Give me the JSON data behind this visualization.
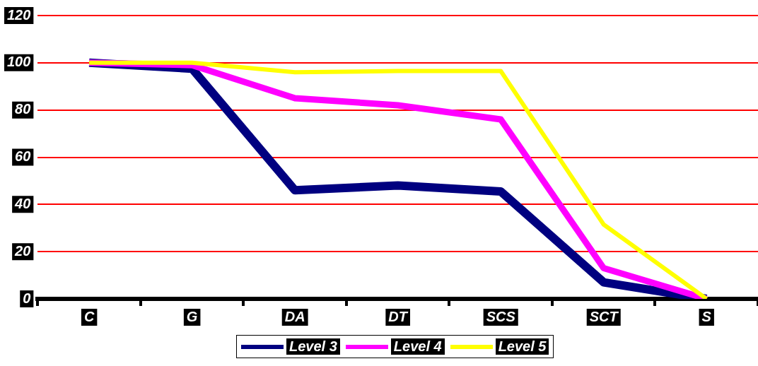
{
  "chart_data": {
    "type": "line",
    "categories": [
      "C",
      "G",
      "DA",
      "DT",
      "SCS",
      "SCT",
      "S"
    ],
    "series": [
      {
        "name": "Level 3",
        "color": "#000080",
        "values": [
          100,
          97.5,
          46,
          48,
          45.5,
          7,
          0
        ]
      },
      {
        "name": "Level 4",
        "color": "#ff00ff",
        "values": [
          100,
          99,
          85,
          82,
          76,
          13,
          0
        ]
      },
      {
        "name": "Level 5",
        "color": "#ffff00",
        "values": [
          100,
          100,
          96,
          96.5,
          96.5,
          31.5,
          0
        ]
      }
    ],
    "ylim": [
      0,
      120
    ],
    "yticks": [
      0,
      20,
      40,
      60,
      80,
      100,
      120
    ],
    "grid": "y",
    "legend": "bottom",
    "marker": "none",
    "line_style": "solid"
  }
}
